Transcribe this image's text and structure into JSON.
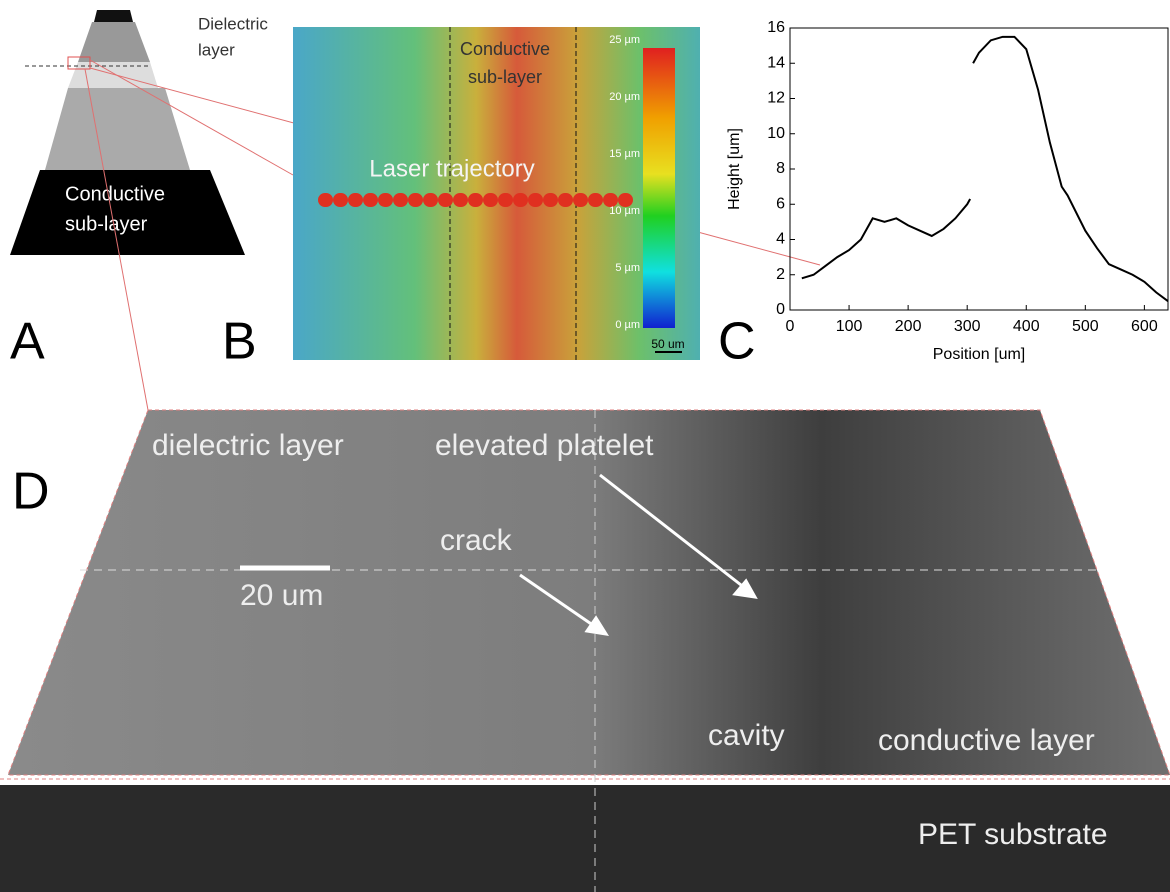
{
  "panel_labels": [
    "A",
    "B",
    "C",
    "D"
  ],
  "panel_a": {
    "top_label": [
      "Dielectric",
      "layer"
    ],
    "bottom_label": [
      "Conductive",
      "sub-layer"
    ]
  },
  "panel_b": {
    "region_label": [
      "Conductive",
      "sub-layer"
    ],
    "trajectory_label": "Laser trajectory",
    "colorbar_labels": [
      "25 µm",
      "20 µm",
      "15 µm",
      "10 µm",
      "5 µm",
      "0 µm"
    ],
    "scale_bar": "50 um"
  },
  "chart_data": {
    "type": "line",
    "xlabel": "Position [um]",
    "ylabel": "Height [um]",
    "x": [
      20,
      40,
      60,
      80,
      100,
      120,
      140,
      160,
      180,
      200,
      220,
      240,
      260,
      280,
      300,
      305,
      307,
      310,
      320,
      340,
      360,
      380,
      400,
      420,
      440,
      460,
      470,
      500,
      520,
      540,
      560,
      580,
      600,
      620,
      640
    ],
    "values": [
      1.8,
      2.0,
      2.5,
      3.0,
      3.4,
      4.0,
      5.2,
      5.0,
      5.2,
      4.8,
      4.5,
      4.2,
      4.6,
      5.2,
      6.0,
      6.3,
      null,
      14.0,
      14.6,
      15.3,
      15.5,
      15.5,
      14.8,
      12.5,
      9.5,
      7.0,
      6.5,
      4.5,
      3.5,
      2.6,
      2.3,
      2.0,
      1.6,
      1.0,
      0.5
    ],
    "color": "#000000",
    "xlim": [
      0,
      640
    ],
    "xticks": [
      0,
      100,
      200,
      300,
      400,
      500,
      600
    ],
    "ylim": [
      0,
      16
    ],
    "yticks": [
      0,
      2,
      4,
      6,
      8,
      10,
      12,
      14,
      16
    ]
  },
  "panel_d": {
    "dielectric": "dielectric layer",
    "platelet": "elevated platelet",
    "crack": "crack",
    "scale_bar": "20 um",
    "cavity": "cavity",
    "conductive": "conductive layer",
    "substrate": "PET substrate"
  }
}
